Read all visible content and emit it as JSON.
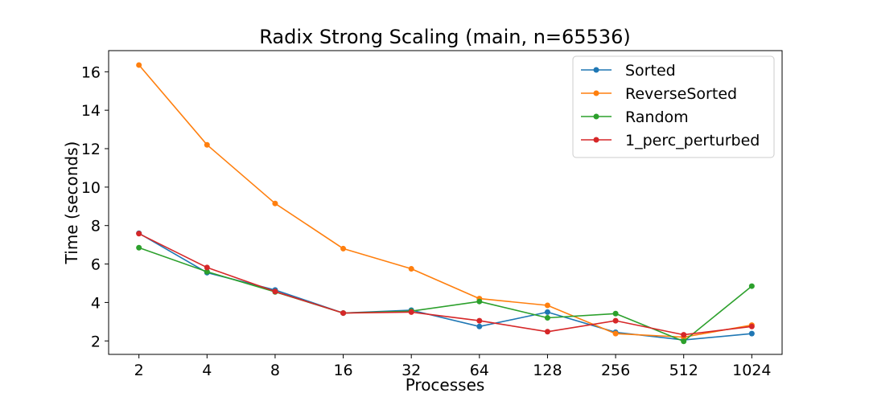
{
  "chart_data": {
    "type": "line",
    "title": "Radix Strong Scaling (main, n=65536)",
    "xlabel": "Processes",
    "ylabel": "Time (seconds)",
    "x_scale": "log2",
    "categories": [
      "2",
      "4",
      "8",
      "16",
      "32",
      "64",
      "128",
      "256",
      "512",
      "1024"
    ],
    "x": [
      2,
      4,
      8,
      16,
      32,
      64,
      128,
      256,
      512,
      1024
    ],
    "yticks": [
      "2",
      "4",
      "6",
      "8",
      "10",
      "12",
      "14",
      "16"
    ],
    "ylim": [
      1.3,
      17.1
    ],
    "grid": false,
    "legend_position": "top-right",
    "series": [
      {
        "name": "Sorted",
        "color": "#1f77b4",
        "values": [
          7.6,
          5.55,
          4.65,
          3.45,
          3.6,
          2.75,
          3.5,
          2.45,
          2.05,
          2.38
        ]
      },
      {
        "name": "ReverseSorted",
        "color": "#ff7f0e",
        "values": [
          16.35,
          12.2,
          9.15,
          6.8,
          5.75,
          4.2,
          3.85,
          2.38,
          2.2,
          2.82
        ]
      },
      {
        "name": "Random",
        "color": "#2ca02c",
        "values": [
          6.85,
          5.6,
          4.55,
          3.45,
          3.55,
          4.05,
          3.2,
          3.42,
          1.98,
          4.85
        ]
      },
      {
        "name": "1_perc_perturbed",
        "color": "#d62728",
        "values": [
          7.58,
          5.82,
          4.57,
          3.45,
          3.5,
          3.05,
          2.48,
          3.05,
          2.32,
          2.75
        ]
      }
    ]
  }
}
